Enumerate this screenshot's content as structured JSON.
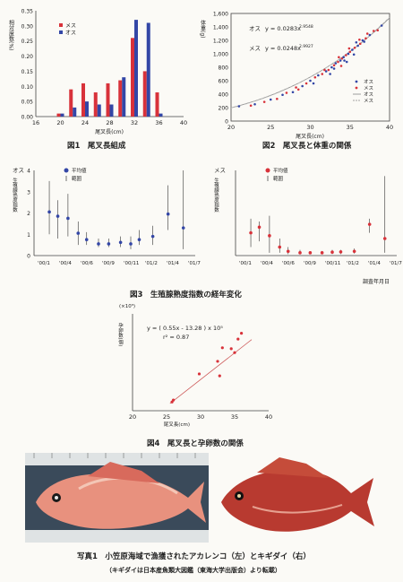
{
  "captions": {
    "fig1": "図1　尾叉長組成",
    "fig2": "図2　尾叉長と体重の関係",
    "fig3": "図3　生殖腺熟度指数の経年変化",
    "fig4": "図4　尾叉長と孕卵数の関係",
    "photo": "写真1　小笠原海域で漁獲されたアカレンコ（左）とキギダイ（右）",
    "photo_note": "（キギダイは日本産魚類大図鑑（東海大学出版会）より転載）",
    "survey_date": "調査年月日"
  },
  "colors": {
    "female": "#d8323a",
    "male": "#3346a6",
    "text": "#222222",
    "page": "#fbfaf6"
  },
  "chart_data": [
    {
      "id": "fig1",
      "type": "bar",
      "ylabel": "相対度数(%)",
      "xlabel": "尾叉長(cm)",
      "yticks": [
        "0.00",
        "0.05",
        "0.10",
        "0.15",
        "0.20",
        "0.25",
        "0.30",
        "0.35"
      ],
      "xticks": [
        "16",
        "20",
        "24",
        "28",
        "32",
        "36",
        "40"
      ],
      "xlim": [
        16,
        40
      ],
      "ylim": [
        0,
        0.35
      ],
      "categories": [
        20,
        22,
        24,
        26,
        28,
        30,
        32,
        34,
        36
      ],
      "series": [
        {
          "name": "メス",
          "color": "#d8323a",
          "values": [
            0.01,
            0.09,
            0.11,
            0.08,
            0.11,
            0.12,
            0.26,
            0.15,
            0.08
          ]
        },
        {
          "name": "オス",
          "color": "#3346a6",
          "values": [
            0.01,
            0.03,
            0.05,
            0.04,
            0.04,
            0.13,
            0.32,
            0.31,
            0.01
          ]
        }
      ]
    },
    {
      "id": "fig2",
      "type": "scatter",
      "ylabel": "体重(g)",
      "xlabel": "尾叉長(cm)",
      "yticks": [
        "0",
        "200",
        "400",
        "600",
        "800",
        "1,000",
        "1,200",
        "1,400",
        "1,600"
      ],
      "xticks": [
        "20",
        "25",
        "30",
        "35",
        "40"
      ],
      "xlim": [
        20,
        40
      ],
      "ylim": [
        0,
        1600
      ],
      "equations": [
        {
          "sex": "オス",
          "formula": "y = 0.0283x",
          "exponent": "2.9548"
        },
        {
          "sex": "メス",
          "formula": "y = 0.0248x",
          "exponent": "2.9927"
        }
      ],
      "legend": [
        "オス",
        "メス",
        "オス",
        "メス"
      ],
      "curve_coefficients": {
        "male": [
          0.0283,
          2.9548
        ],
        "female": [
          0.0248,
          2.9927
        ]
      },
      "points": [
        [
          21.0,
          220
        ],
        [
          22.5,
          230
        ],
        [
          23.0,
          250
        ],
        [
          24.2,
          285
        ],
        [
          25.0,
          320
        ],
        [
          25.8,
          330
        ],
        [
          26.5,
          390
        ],
        [
          27.0,
          420
        ],
        [
          27.8,
          430
        ],
        [
          28.5,
          470
        ],
        [
          29.0,
          520
        ],
        [
          29.5,
          560
        ],
        [
          30.0,
          600
        ],
        [
          30.6,
          650
        ],
        [
          31.0,
          680
        ],
        [
          31.5,
          700
        ],
        [
          32.0,
          740
        ],
        [
          32.3,
          760
        ],
        [
          32.7,
          800
        ],
        [
          33.0,
          830
        ],
        [
          33.2,
          860
        ],
        [
          33.5,
          880
        ],
        [
          33.8,
          900
        ],
        [
          34.0,
          930
        ],
        [
          34.2,
          950
        ],
        [
          34.5,
          980
        ],
        [
          34.8,
          1000
        ],
        [
          35.0,
          1030
        ],
        [
          35.3,
          1060
        ],
        [
          35.6,
          1090
        ],
        [
          36.0,
          1120
        ],
        [
          36.3,
          1150
        ],
        [
          36.6,
          1200
        ],
        [
          37.0,
          1230
        ],
        [
          37.5,
          1280
        ],
        [
          38.0,
          1340
        ],
        [
          33.0,
          780
        ],
        [
          33.6,
          950
        ],
        [
          34.3,
          900
        ],
        [
          34.9,
          1080
        ],
        [
          35.5,
          990
        ],
        [
          36.2,
          1210
        ],
        [
          32.5,
          700
        ],
        [
          31.8,
          760
        ],
        [
          30.4,
          560
        ],
        [
          28.2,
          500
        ],
        [
          35.8,
          1170
        ],
        [
          37.2,
          1300
        ],
        [
          34.6,
          880
        ],
        [
          33.9,
          820
        ],
        [
          36.8,
          1180
        ],
        [
          38.5,
          1350
        ],
        [
          39.0,
          1420
        ]
      ]
    },
    {
      "id": "fig3-male",
      "type": "scatter",
      "title": "オス",
      "ylabel": "生殖線熟度指数",
      "yticks": [
        "0",
        "1",
        "2",
        "3",
        "4"
      ],
      "xticks": [
        "'00/1",
        "'00/4",
        "'00/6",
        "'00/9",
        "'00/11",
        "'01/2",
        "'01/4",
        "'01/7"
      ],
      "ylim": [
        0,
        4
      ],
      "legend": [
        "平均値",
        "範囲"
      ],
      "points": [
        {
          "x": 0.9,
          "mean": 2.05,
          "low": 1.0,
          "high": 3.5
        },
        {
          "x": 1.4,
          "mean": 1.85,
          "low": 0.8,
          "high": 2.6
        },
        {
          "x": 2.0,
          "mean": 1.75,
          "low": 0.9,
          "high": 2.9
        },
        {
          "x": 2.6,
          "mean": 1.05,
          "low": 0.5,
          "high": 1.6
        },
        {
          "x": 3.1,
          "mean": 0.75,
          "low": 0.5,
          "high": 1.1
        },
        {
          "x": 3.8,
          "mean": 0.55,
          "low": 0.4,
          "high": 0.8
        },
        {
          "x": 4.4,
          "mean": 0.55,
          "low": 0.4,
          "high": 0.8
        },
        {
          "x": 5.1,
          "mean": 0.62,
          "low": 0.4,
          "high": 0.9
        },
        {
          "x": 5.7,
          "mean": 0.55,
          "low": 0.3,
          "high": 0.9
        },
        {
          "x": 6.2,
          "mean": 0.75,
          "low": 0.5,
          "high": 1.2
        },
        {
          "x": 7.0,
          "mean": 0.9,
          "low": 0.5,
          "high": 1.4
        },
        {
          "x": 7.9,
          "mean": 1.95,
          "low": 1.2,
          "high": 3.3
        },
        {
          "x": 8.8,
          "mean": 1.3,
          "low": 0.3,
          "high": 4.0
        }
      ]
    },
    {
      "id": "fig3-female",
      "type": "scatter",
      "title": "メス",
      "ylabel": "生殖線熟度指数",
      "xticks": [
        "'00/1",
        "'00/4",
        "'00/6",
        "'00/9",
        "'00/11",
        "'01/2",
        "'01/4",
        "'01/7"
      ],
      "ylim": [
        0,
        30
      ],
      "legend": [
        "平均値",
        "範囲"
      ],
      "points": [
        {
          "x": 0.9,
          "mean": 8.0,
          "low": 3.0,
          "high": 13.0
        },
        {
          "x": 1.4,
          "mean": 10.0,
          "low": 5.0,
          "high": 12.0
        },
        {
          "x": 2.0,
          "mean": 7.0,
          "low": 1.0,
          "high": 14.0
        },
        {
          "x": 2.6,
          "mean": 3.0,
          "low": 1.0,
          "high": 6.0
        },
        {
          "x": 3.1,
          "mean": 1.5,
          "low": 0.5,
          "high": 3.0
        },
        {
          "x": 3.8,
          "mean": 1.0,
          "low": 0.5,
          "high": 2.0
        },
        {
          "x": 4.4,
          "mean": 1.0,
          "low": 0.5,
          "high": 1.5
        },
        {
          "x": 5.1,
          "mean": 1.0,
          "low": 0.5,
          "high": 1.6
        },
        {
          "x": 5.7,
          "mean": 1.2,
          "low": 0.5,
          "high": 2.0
        },
        {
          "x": 6.2,
          "mean": 1.3,
          "low": 0.5,
          "high": 2.0
        },
        {
          "x": 7.0,
          "mean": 1.5,
          "low": 0.7,
          "high": 2.5
        },
        {
          "x": 7.9,
          "mean": 11.0,
          "low": 8.0,
          "high": 13.0
        },
        {
          "x": 8.8,
          "mean": 6.0,
          "low": 1.0,
          "high": 28.0
        }
      ]
    },
    {
      "id": "fig4",
      "type": "scatter",
      "ylabel": "孕卵数(個)",
      "yunit": "(×10⁵)",
      "xlabel": "尾叉長(cm)",
      "xticks": [
        "20",
        "25",
        "30",
        "35",
        "40"
      ],
      "xlim": [
        20,
        40
      ],
      "ylim": [
        0,
        10
      ],
      "equation": "y = ( 0.55x - 13.28 ) x 10⁵",
      "r2": "r² = 0.87",
      "points": [
        [
          25.8,
          0.9
        ],
        [
          26.0,
          1.1
        ],
        [
          29.8,
          3.8
        ],
        [
          32.5,
          5.1
        ],
        [
          32.8,
          3.6
        ],
        [
          33.2,
          6.5
        ],
        [
          34.5,
          6.4
        ],
        [
          35.0,
          6.0
        ],
        [
          35.5,
          7.4
        ],
        [
          36.0,
          8.0
        ]
      ]
    }
  ]
}
